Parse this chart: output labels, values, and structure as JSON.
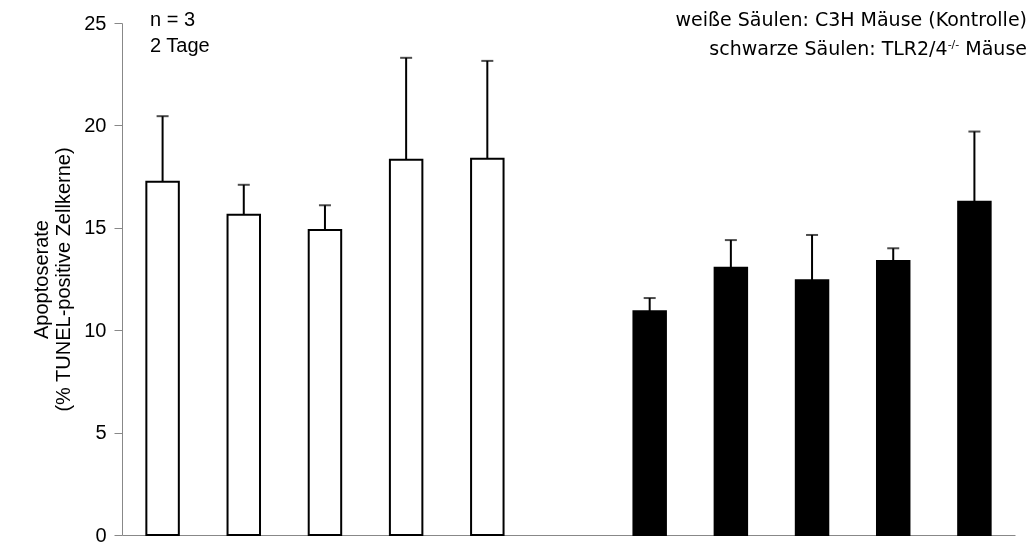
{
  "chart_data": {
    "type": "bar",
    "ylabel": "Apoptoserate\n(% TUNEL-positive Zellkerne)",
    "categories": [
      null,
      null,
      null,
      null,
      null,
      null,
      null,
      null,
      null,
      null,
      null
    ],
    "series": [
      {
        "color": "#ffffff",
        "values": [
          17.25,
          15.64,
          14.89,
          18.32,
          18.37,
          null,
          null,
          null,
          null,
          null,
          null
        ],
        "errors": [
          [
            17.25,
            20.45
          ],
          [
            15.64,
            17.1
          ],
          [
            14.89,
            16.1
          ],
          [
            18.32,
            23.3
          ],
          [
            18.37,
            23.15
          ],
          null,
          null,
          null,
          null,
          null,
          null
        ]
      },
      {
        "color": "#000000",
        "values": [
          null,
          null,
          null,
          null,
          null,
          null,
          10.92,
          13.05,
          12.44,
          13.38,
          16.27
        ],
        "errors": [
          null,
          null,
          null,
          null,
          null,
          null,
          [
            10.92,
            11.57
          ],
          [
            13.05,
            14.4
          ],
          [
            12.44,
            14.65
          ],
          [
            13.38,
            14.0
          ],
          [
            16.27,
            19.7
          ]
        ]
      }
    ],
    "ylim": [
      0,
      25
    ],
    "yticks": [
      0,
      5,
      10,
      15,
      20,
      25
    ],
    "grid": false,
    "legend": false,
    "annotations": [
      "n = 3",
      "2 Tage",
      "weiße Säulen: C3H Mäuse (Kontrolle)",
      "schwarze Säulen: TLR2/4$^{-/-}$ Mäuse"
    ]
  }
}
